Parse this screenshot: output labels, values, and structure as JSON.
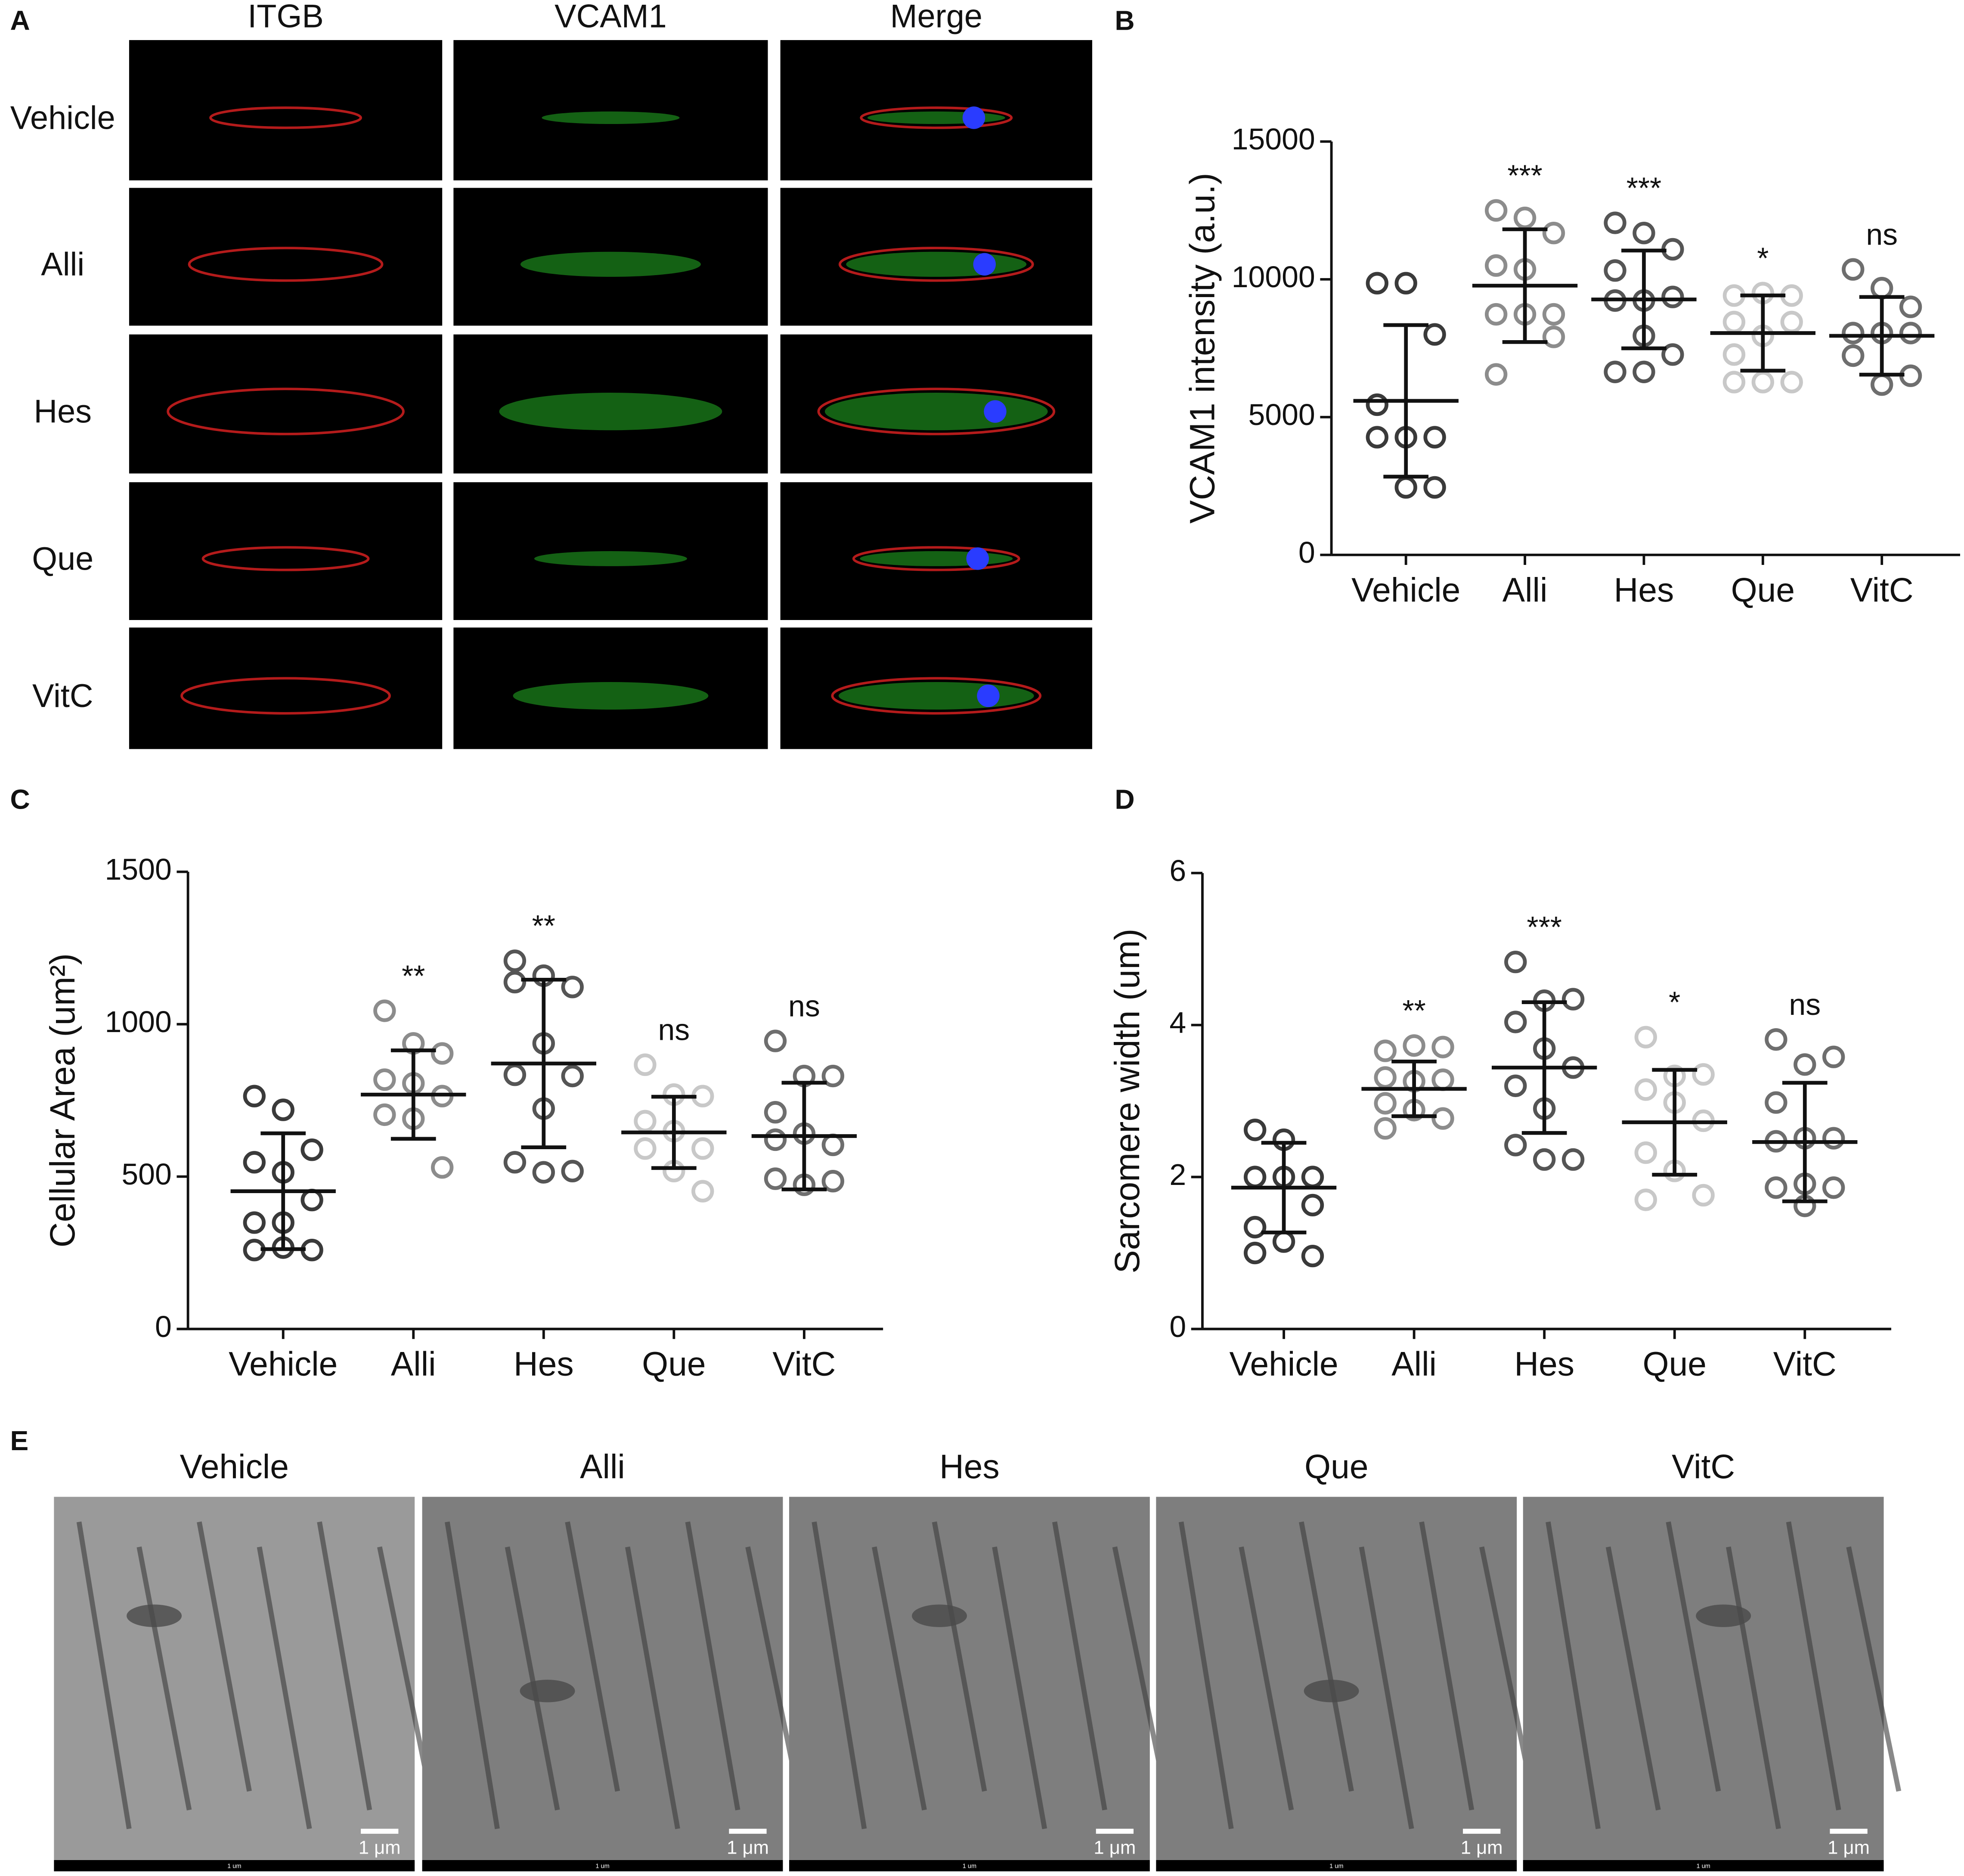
{
  "panel_a": {
    "label": "A",
    "columns": [
      "ITGB",
      "VCAM1",
      "Merge"
    ],
    "rows": [
      "Vehicle",
      "Alli",
      "Hes",
      "Que",
      "VitC"
    ]
  },
  "chart_data": [
    {
      "type": "scatter",
      "panel_label": "B",
      "y_label": "VCAM1 intensity (a.u.)",
      "categories": [
        "Vehicle",
        "Alli",
        "Hes",
        "Que",
        "VitC"
      ],
      "colors": [
        "#3a3a3a",
        "#8c8c8c",
        "#555555",
        "#c8c8c8",
        "#6e6e6e"
      ],
      "points": [
        [
          9860,
          9860,
          8000,
          5450,
          4270,
          4270,
          4270,
          2450,
          2450
        ],
        [
          12500,
          12230,
          11680,
          10500,
          10360,
          8730,
          8730,
          8730,
          7910,
          6550
        ],
        [
          12050,
          11680,
          11090,
          10320,
          9230,
          9360,
          9230,
          7950,
          7270,
          6640,
          6640
        ],
        [
          9410,
          9500,
          9410,
          8450,
          7950,
          8450,
          7270,
          6270,
          6270,
          6270
        ],
        [
          10360,
          9680,
          9000,
          8050,
          8050,
          8050,
          7230,
          6180,
          6500
        ]
      ],
      "mean": [
        5590,
        9770,
        9270,
        8050,
        7950
      ],
      "sd": [
        2750,
        2045,
        1775,
        1365,
        1410
      ],
      "significance": [
        null,
        "***",
        "***",
        "*",
        "ns"
      ],
      "ylim": [
        0,
        15000
      ],
      "yticks": [
        0,
        5000,
        10000,
        15000
      ]
    },
    {
      "type": "scatter",
      "panel_label": "C",
      "y_label": "Cellular Area (um²)",
      "categories": [
        "Vehicle",
        "Alli",
        "Hes",
        "Que",
        "VitC"
      ],
      "colors": [
        "#3a3a3a",
        "#8c8c8c",
        "#555555",
        "#c8c8c8",
        "#6e6e6e"
      ],
      "points": [
        [
          764,
          719,
          588,
          547,
          514,
          423,
          349,
          349,
          259,
          259,
          267
        ],
        [
          1044,
          937,
          904,
          818,
          806,
          764,
          703,
          690,
          530
        ],
        [
          1208,
          1159,
          1122,
          1138,
          937,
          830,
          834,
          723,
          518,
          547,
          514
        ],
        [
          867,
          769,
          764,
          682,
          649,
          592,
          592,
          518,
          452
        ],
        [
          945,
          830,
          830,
          711,
          641,
          604,
          621,
          473,
          485,
          493
        ]
      ],
      "mean": [
        452,
        769,
        871,
        645,
        633
      ],
      "sd": [
        190,
        145,
        275,
        117,
        175
      ],
      "significance": [
        null,
        "**",
        "**",
        "ns",
        "ns"
      ],
      "ylim": [
        0,
        1500
      ],
      "yticks": [
        0,
        500,
        1000,
        1500
      ]
    },
    {
      "type": "scatter",
      "panel_label": "D",
      "y_label": "Sarcomere width (um)",
      "categories": [
        "Vehicle",
        "Alli",
        "Hes",
        "Que",
        "VitC"
      ],
      "colors": [
        "#3a3a3a",
        "#8c8c8c",
        "#555555",
        "#c8c8c8",
        "#6e6e6e"
      ],
      "points": [
        [
          2.62,
          2.49,
          2.0,
          2.0,
          2.0,
          1.63,
          1.34,
          1.15,
          0.96,
          1.0
        ],
        [
          3.66,
          3.73,
          3.71,
          3.31,
          3.26,
          3.28,
          2.97,
          2.88,
          2.77,
          2.64
        ],
        [
          4.83,
          4.32,
          4.34,
          4.04,
          3.69,
          3.44,
          3.2,
          2.9,
          2.23,
          2.42,
          2.23
        ],
        [
          3.84,
          3.33,
          3.35,
          3.15,
          2.98,
          2.74,
          2.32,
          2.08,
          1.76,
          1.7
        ],
        [
          3.81,
          3.48,
          3.58,
          2.98,
          2.51,
          2.51,
          2.47,
          1.91,
          1.86,
          1.86,
          1.62
        ]
      ],
      "mean": [
        1.86,
        3.16,
        3.44,
        2.72,
        2.46
      ],
      "sd": [
        0.59,
        0.36,
        0.86,
        0.69,
        0.78
      ],
      "significance": [
        null,
        "**",
        "***",
        "*",
        "ns"
      ],
      "ylim": [
        0,
        6
      ],
      "yticks": [
        0,
        2,
        4,
        6
      ]
    }
  ],
  "panel_e": {
    "label": "E",
    "columns": [
      "Vehicle",
      "Alli",
      "Hes",
      "Que",
      "VitC"
    ],
    "scale_bar": "1 μm",
    "ruler": "1 um"
  }
}
